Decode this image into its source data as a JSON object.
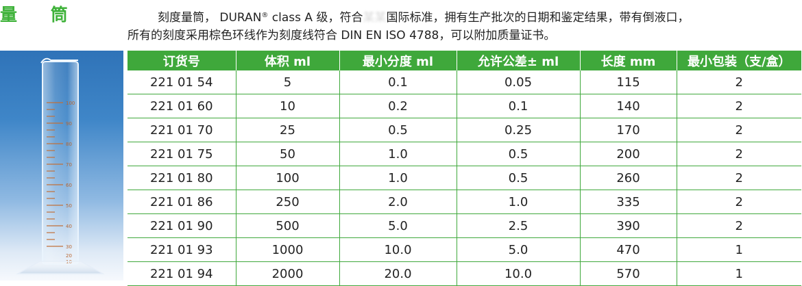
{
  "title": "量 筒",
  "intro": {
    "line1_prefix": "刻度量筒， DURAN",
    "reg_mark": "®",
    "line1_mid": " class A 级，符合",
    "line1_obscured": "某某",
    "line1_suffix": "国际标准，拥有生产批次的日期和鉴定结果，带有倒液口，",
    "line2": "所有的刻度采用棕色环线作为刻度线符合 DIN EN ISO 4788，可以附加质量证书。"
  },
  "table": {
    "headers": [
      "订货号",
      "体积 ml",
      "最小分度 ml",
      "允许公差± ml",
      "长度 mm",
      "最小包装（支/盒）"
    ],
    "rows": [
      [
        "221 01 54",
        "5",
        "0.1",
        "0.05",
        "115",
        "2"
      ],
      [
        "221 01 60",
        "10",
        "0.2",
        "0.1",
        "140",
        "2"
      ],
      [
        "221 01 70",
        "25",
        "0.5",
        "0.25",
        "170",
        "2"
      ],
      [
        "221 01 75",
        "50",
        "1.0",
        "0.5",
        "200",
        "2"
      ],
      [
        "221 01 80",
        "100",
        "1.0",
        "0.5",
        "260",
        "2"
      ],
      [
        "221 01 86",
        "250",
        "2.0",
        "1.0",
        "335",
        "2"
      ],
      [
        "221 01 90",
        "500",
        "5.0",
        "2.5",
        "390",
        "2"
      ],
      [
        "221 01 93",
        "1000",
        "10.0",
        "5.0",
        "470",
        "1"
      ],
      [
        "221 01 94",
        "2000",
        "20.0",
        "10.0",
        "570",
        "1"
      ]
    ]
  },
  "photo": {
    "scale_labels": [
      "100",
      "90",
      "80",
      "70",
      "60",
      "50",
      "40",
      "30",
      "20",
      "10"
    ]
  },
  "colors": {
    "accent_green": "#3fa83b",
    "header_text": "#ffffff",
    "photo_background": "#3f86c8"
  }
}
